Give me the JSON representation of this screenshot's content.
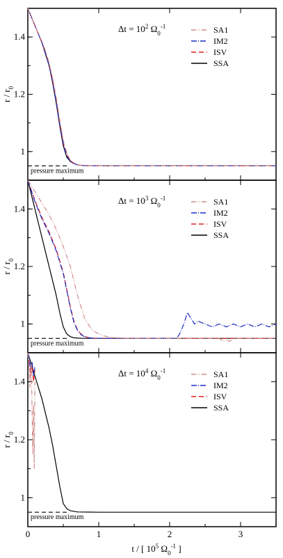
{
  "chart_data": {
    "type": "line",
    "xlim": [
      0,
      3.5
    ],
    "ylim": [
      0.9,
      1.5
    ],
    "x_ticks": [
      "0",
      "1",
      "2",
      "3"
    ],
    "y_ticks": [
      "1",
      "1.2",
      "1.4"
    ],
    "xlabel": {
      "main": "t / [ 10",
      "sup1": "5",
      "omega": " Ω",
      "sub": "0",
      "sup2": "-1",
      "close": " ]"
    },
    "ylabel": {
      "main": "r / r",
      "sub": "0"
    },
    "pressure_maximum": {
      "label": "pressure maximum",
      "value": 0.95
    },
    "series_styles": {
      "SA1": {
        "color": "#d08a8a",
        "dash": "7,2,1,2,1,2"
      },
      "IM2": {
        "color": "#1a2cc8",
        "dash": "8,2,1,2"
      },
      "ISV": {
        "color": "#e02020",
        "dash": "7,4"
      },
      "SSA": {
        "color": "#000000",
        "dash": ""
      }
    },
    "panels": [
      {
        "title": {
          "delta": "Δt = 10",
          "exp": "2",
          "omega": " Ω",
          "sub": "0",
          "sup": "-1"
        },
        "legend": [
          "SA1",
          "IM2",
          "ISV",
          "SSA"
        ],
        "series": [
          {
            "name": "SSA",
            "x": [
              0,
              0.05,
              0.1,
              0.15,
              0.2,
              0.25,
              0.3,
              0.35,
              0.4,
              0.45,
              0.5,
              0.55,
              0.6,
              0.65,
              0.7,
              0.75,
              0.8,
              0.9,
              1.0,
              3.5
            ],
            "y": [
              1.5,
              1.47,
              1.44,
              1.41,
              1.38,
              1.34,
              1.3,
              1.24,
              1.17,
              1.09,
              1.02,
              0.98,
              0.965,
              0.958,
              0.954,
              0.952,
              0.951,
              0.95,
              0.95,
              0.95
            ]
          },
          {
            "name": "ISV",
            "x": [
              0,
              0.05,
              0.1,
              0.15,
              0.2,
              0.25,
              0.3,
              0.35,
              0.4,
              0.45,
              0.5,
              0.55,
              0.6,
              0.65,
              0.7,
              0.75,
              0.8,
              0.9,
              1.0,
              3.5
            ],
            "y": [
              1.5,
              1.47,
              1.44,
              1.41,
              1.38,
              1.345,
              1.305,
              1.25,
              1.18,
              1.1,
              1.03,
              0.99,
              0.968,
              0.959,
              0.955,
              0.952,
              0.951,
              0.95,
              0.95,
              0.95
            ]
          },
          {
            "name": "IM2",
            "x": [
              0,
              0.05,
              0.1,
              0.15,
              0.2,
              0.25,
              0.3,
              0.35,
              0.4,
              0.45,
              0.5,
              0.55,
              0.6,
              0.65,
              0.7,
              0.75,
              0.8,
              0.9,
              1.0,
              3.5
            ],
            "y": [
              1.5,
              1.47,
              1.44,
              1.41,
              1.38,
              1.342,
              1.302,
              1.245,
              1.175,
              1.095,
              1.025,
              0.985,
              0.966,
              0.958,
              0.954,
              0.952,
              0.951,
              0.95,
              0.95,
              0.95
            ]
          },
          {
            "name": "SA1",
            "x": [
              0,
              0.05,
              0.1,
              0.15,
              0.2,
              0.25,
              0.3,
              0.35,
              0.4,
              0.45,
              0.5,
              0.55,
              0.6,
              0.65,
              0.7,
              0.75,
              0.8,
              0.9,
              1.0,
              3.5
            ],
            "y": [
              1.5,
              1.47,
              1.44,
              1.41,
              1.385,
              1.35,
              1.31,
              1.255,
              1.19,
              1.11,
              1.04,
              0.995,
              0.97,
              0.96,
              0.955,
              0.952,
              0.951,
              0.95,
              0.95,
              0.95
            ]
          }
        ]
      },
      {
        "title": {
          "delta": "Δt = 10",
          "exp": "3",
          "omega": " Ω",
          "sub": "0",
          "sup": "-1"
        },
        "legend": [
          "SA1",
          "IM2",
          "ISV",
          "SSA"
        ],
        "series": [
          {
            "name": "SSA",
            "x": [
              0,
              0.05,
              0.1,
              0.15,
              0.2,
              0.25,
              0.3,
              0.35,
              0.4,
              0.45,
              0.5,
              0.55,
              0.6,
              0.65,
              0.7,
              0.8,
              1.0,
              3.5
            ],
            "y": [
              1.5,
              1.45,
              1.4,
              1.35,
              1.3,
              1.25,
              1.2,
              1.15,
              1.1,
              1.04,
              0.99,
              0.965,
              0.956,
              0.952,
              0.951,
              0.95,
              0.95,
              0.95
            ]
          },
          {
            "name": "ISV",
            "x": [
              0,
              0.1,
              0.2,
              0.3,
              0.4,
              0.5,
              0.55,
              0.6,
              0.65,
              0.7,
              0.75,
              0.8,
              0.85,
              0.9,
              1.0,
              1.2,
              3.5
            ],
            "y": [
              1.5,
              1.43,
              1.37,
              1.32,
              1.26,
              1.18,
              1.12,
              1.06,
              1.01,
              0.98,
              0.965,
              0.957,
              0.953,
              0.951,
              0.95,
              0.95,
              0.95
            ]
          },
          {
            "name": "IM2",
            "x": [
              0,
              0.1,
              0.2,
              0.3,
              0.4,
              0.5,
              0.55,
              0.6,
              0.65,
              0.7,
              0.75,
              0.8,
              0.85,
              0.9,
              1.0,
              1.2,
              2.0,
              2.1,
              2.15,
              2.2,
              2.25,
              2.3,
              2.35,
              2.4,
              2.5,
              2.6,
              2.7,
              2.8,
              2.9,
              3.0,
              3.1,
              3.2,
              3.3,
              3.4,
              3.5
            ],
            "y": [
              1.5,
              1.425,
              1.365,
              1.315,
              1.255,
              1.175,
              1.115,
              1.055,
              1.005,
              0.978,
              0.963,
              0.956,
              0.952,
              0.951,
              0.95,
              0.95,
              0.95,
              0.95,
              0.97,
              1.0,
              1.04,
              1.02,
              1.0,
              1.01,
              1.0,
              0.99,
              1.0,
              0.99,
              1.0,
              0.99,
              1.0,
              0.99,
              1.0,
              0.99,
              1.0
            ]
          },
          {
            "name": "SA1",
            "x": [
              0,
              0.1,
              0.2,
              0.3,
              0.4,
              0.5,
              0.6,
              0.7,
              0.8,
              0.9,
              1.0,
              1.1,
              1.2,
              1.3,
              1.5,
              2.0,
              2.7,
              2.75,
              2.8,
              2.85,
              2.9,
              3.5
            ],
            "y": [
              1.5,
              1.46,
              1.42,
              1.38,
              1.33,
              1.27,
              1.2,
              1.1,
              1.02,
              0.98,
              0.965,
              0.957,
              0.953,
              0.951,
              0.95,
              0.95,
              0.95,
              0.94,
              0.945,
              0.94,
              0.95,
              0.95
            ]
          }
        ]
      },
      {
        "title": {
          "delta": "Δt = 10",
          "exp": "4",
          "omega": " Ω",
          "sub": "0",
          "sup": "-1"
        },
        "legend": [
          "SA1",
          "IM2",
          "ISV",
          "SSA"
        ],
        "series": [
          {
            "name": "SSA",
            "x": [
              0,
              0.1,
              0.2,
              0.3,
              0.35,
              0.4,
              0.45,
              0.5,
              0.55,
              0.6,
              0.7,
              1.0,
              3.5
            ],
            "y": [
              1.5,
              1.42,
              1.34,
              1.24,
              1.18,
              1.11,
              1.04,
              0.98,
              0.962,
              0.955,
              0.951,
              0.95,
              0.95
            ]
          },
          {
            "name": "ISV",
            "x": [
              0,
              0.02,
              0.04,
              0.06,
              0.08,
              0.1
            ],
            "y": [
              1.5,
              1.47,
              1.42,
              1.46,
              1.4,
              1.44
            ]
          },
          {
            "name": "IM2",
            "x": [
              0,
              0.02,
              0.04,
              0.06,
              0.08,
              0.1
            ],
            "y": [
              1.5,
              1.48,
              1.44,
              1.47,
              1.42,
              1.45
            ]
          },
          {
            "name": "SA1",
            "x": [
              0,
              0.02,
              0.03,
              0.05,
              0.07,
              0.08,
              0.09,
              0.1
            ],
            "y": [
              1.5,
              1.43,
              1.38,
              1.46,
              1.15,
              1.32,
              1.1,
              1.4
            ]
          }
        ]
      }
    ]
  }
}
